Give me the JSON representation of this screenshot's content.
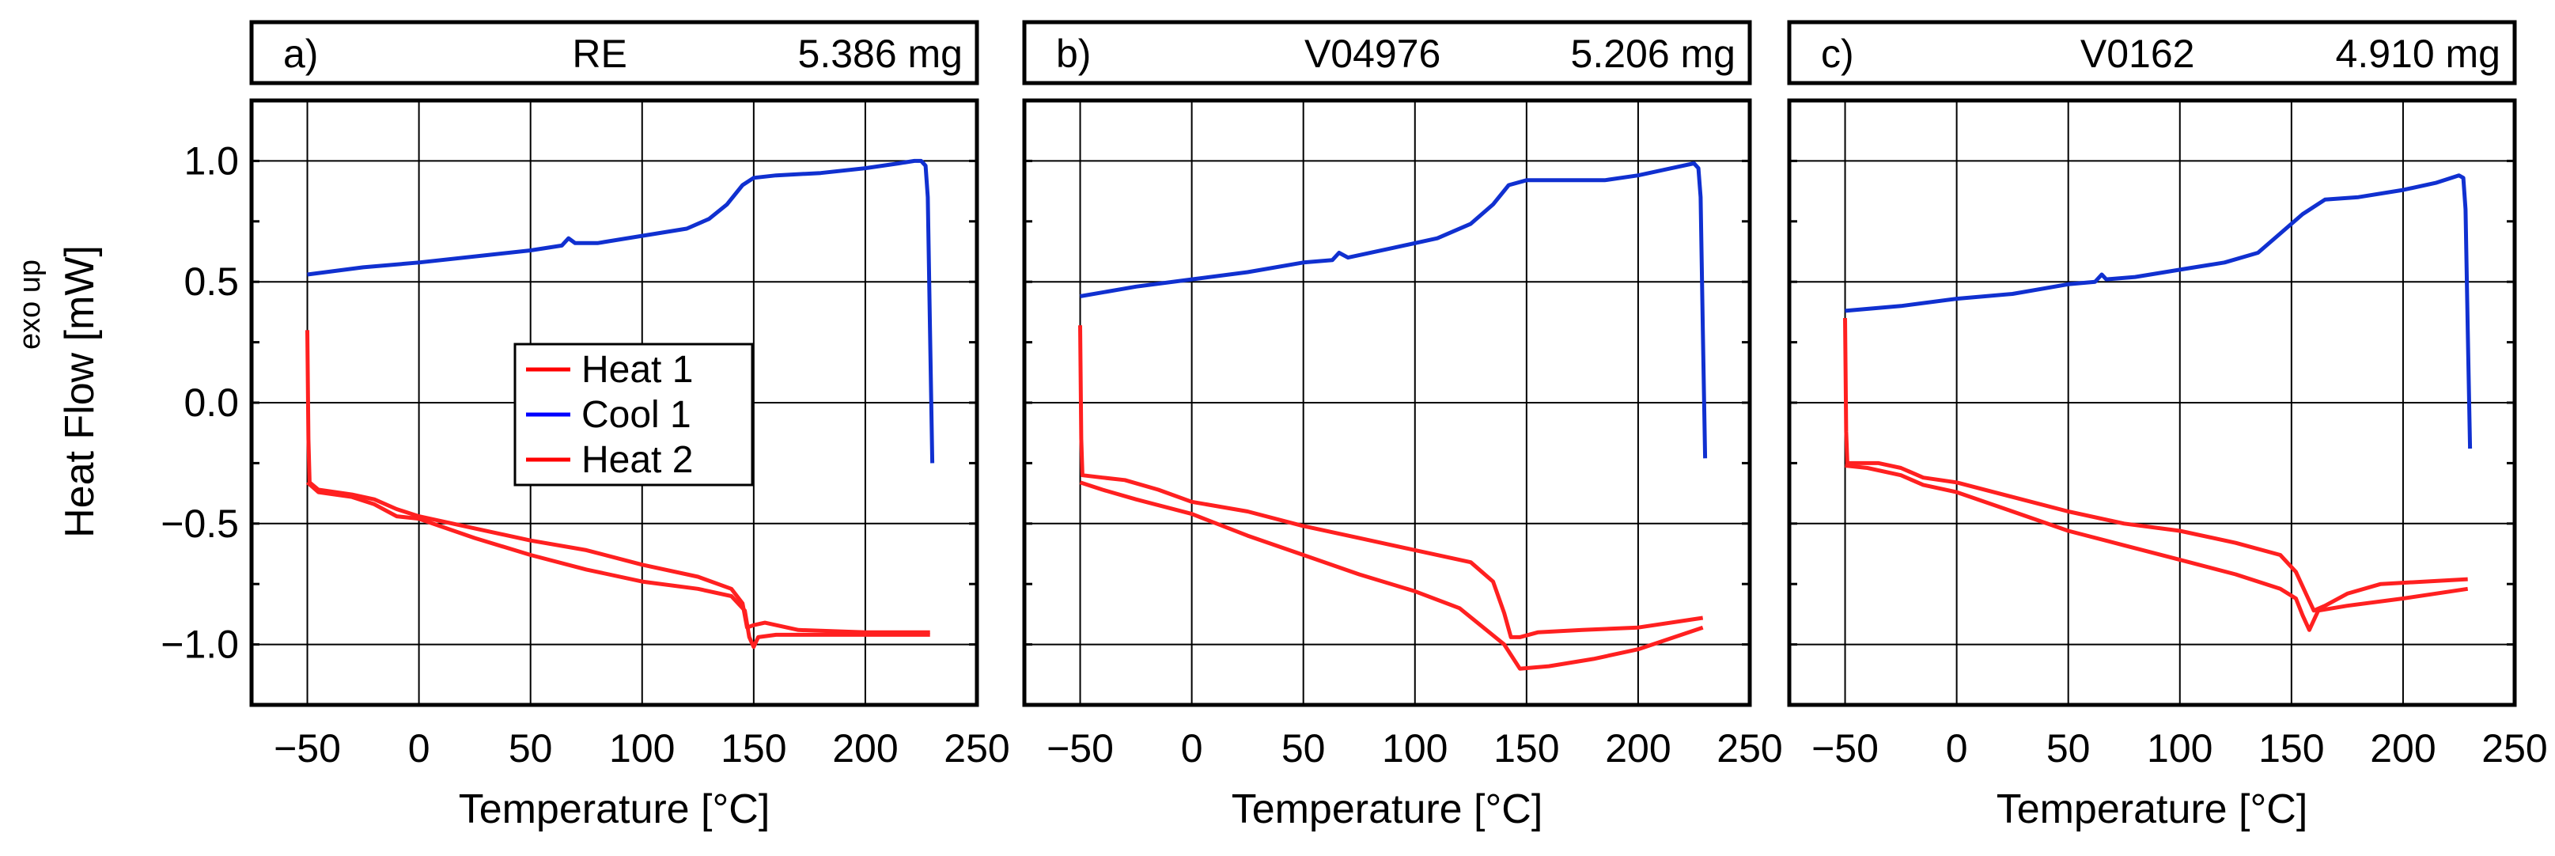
{
  "figure": {
    "y_label_side": "exo up",
    "y_label_main": "Heat Flow   [mW]"
  },
  "legend": {
    "entries": [
      {
        "label": "Heat 1",
        "color": "#ff0000"
      },
      {
        "label": "Cool 1",
        "color": "#0000ff"
      },
      {
        "label": "Heat 2",
        "color": "#ff0000"
      }
    ]
  },
  "colors": {
    "heat": "#ff2020",
    "cool": "#1030d0"
  },
  "chart_data": [
    {
      "type": "line",
      "panel": "a)",
      "sample": "RE",
      "mass": "5.386 mg",
      "xlabel": "Temperature   [°C]",
      "ylabel": "Heat Flow   [mW]",
      "xlim": [
        -75,
        250
      ],
      "ylim": [
        -1.25,
        1.25
      ],
      "xticks": [
        -50,
        0,
        50,
        100,
        150,
        200,
        250
      ],
      "xtick_labels": [
        "−50",
        "0",
        "50",
        "100",
        "150",
        "200",
        "250"
      ],
      "yticks": [
        -1.0,
        -0.5,
        0.0,
        0.5,
        1.0
      ],
      "ytick_labels": [
        "−1.0",
        "−0.5",
        "0.0",
        "0.5",
        "1.0"
      ],
      "series": [
        {
          "name": "Cool 1",
          "points": [
            [
              230,
              -0.25
            ],
            [
              229,
              0.3
            ],
            [
              228,
              0.85
            ],
            [
              227,
              0.98
            ],
            [
              225,
              1.0
            ],
            [
              222,
              1.0
            ],
            [
              215,
              0.99
            ],
            [
              200,
              0.97
            ],
            [
              180,
              0.95
            ],
            [
              160,
              0.94
            ],
            [
              150,
              0.93
            ],
            [
              145,
              0.9
            ],
            [
              138,
              0.82
            ],
            [
              130,
              0.76
            ],
            [
              120,
              0.72
            ],
            [
              100,
              0.69
            ],
            [
              80,
              0.66
            ],
            [
              70,
              0.66
            ],
            [
              67,
              0.68
            ],
            [
              64,
              0.65
            ],
            [
              50,
              0.63
            ],
            [
              30,
              0.61
            ],
            [
              0,
              0.58
            ],
            [
              -25,
              0.56
            ],
            [
              -50,
              0.53
            ]
          ]
        },
        {
          "name": "Heat 1",
          "points": [
            [
              -50,
              0.3
            ],
            [
              -49.5,
              -0.15
            ],
            [
              -49,
              -0.33
            ],
            [
              -45,
              -0.36
            ],
            [
              -30,
              -0.38
            ],
            [
              -20,
              -0.4
            ],
            [
              -10,
              -0.44
            ],
            [
              0,
              -0.47
            ],
            [
              25,
              -0.52
            ],
            [
              50,
              -0.57
            ],
            [
              75,
              -0.61
            ],
            [
              100,
              -0.67
            ],
            [
              125,
              -0.72
            ],
            [
              140,
              -0.77
            ],
            [
              145,
              -0.83
            ],
            [
              147,
              -0.93
            ],
            [
              150,
              -0.92
            ],
            [
              155,
              -0.91
            ],
            [
              170,
              -0.94
            ],
            [
              200,
              -0.95
            ],
            [
              229,
              -0.95
            ]
          ]
        },
        {
          "name": "Heat 2",
          "points": [
            [
              -50,
              -0.33
            ],
            [
              -45,
              -0.37
            ],
            [
              -30,
              -0.39
            ],
            [
              -20,
              -0.42
            ],
            [
              -10,
              -0.47
            ],
            [
              0,
              -0.48
            ],
            [
              25,
              -0.56
            ],
            [
              50,
              -0.63
            ],
            [
              75,
              -0.69
            ],
            [
              100,
              -0.74
            ],
            [
              125,
              -0.77
            ],
            [
              140,
              -0.8
            ],
            [
              146,
              -0.86
            ],
            [
              148,
              -0.97
            ],
            [
              150,
              -1.01
            ],
            [
              152,
              -0.97
            ],
            [
              160,
              -0.96
            ],
            [
              200,
              -0.96
            ],
            [
              229,
              -0.96
            ]
          ]
        }
      ]
    },
    {
      "type": "line",
      "panel": "b)",
      "sample": "V04976",
      "mass": "5.206 mg",
      "xlabel": "Temperature   [°C]",
      "ylabel": "Heat Flow   [mW]",
      "xlim": [
        -75,
        250
      ],
      "ylim": [
        -1.25,
        1.25
      ],
      "xticks": [
        -50,
        0,
        50,
        100,
        150,
        200,
        250
      ],
      "xtick_labels": [
        "−50",
        "0",
        "50",
        "100",
        "150",
        "200",
        "250"
      ],
      "yticks": [
        -1.0,
        -0.5,
        0.0,
        0.5,
        1.0
      ],
      "ytick_labels": [
        "−1.0",
        "−0.5",
        "0.0",
        "0.5",
        "1.0"
      ],
      "series": [
        {
          "name": "Cool 1",
          "points": [
            [
              230,
              -0.23
            ],
            [
              229,
              0.3
            ],
            [
              228,
              0.85
            ],
            [
              227,
              0.97
            ],
            [
              225,
              0.99
            ],
            [
              215,
              0.97
            ],
            [
              200,
              0.94
            ],
            [
              185,
              0.92
            ],
            [
              170,
              0.92
            ],
            [
              150,
              0.92
            ],
            [
              142,
              0.9
            ],
            [
              135,
              0.82
            ],
            [
              125,
              0.74
            ],
            [
              110,
              0.68
            ],
            [
              90,
              0.64
            ],
            [
              70,
              0.6
            ],
            [
              66,
              0.62
            ],
            [
              63,
              0.59
            ],
            [
              50,
              0.58
            ],
            [
              25,
              0.54
            ],
            [
              0,
              0.51
            ],
            [
              -25,
              0.48
            ],
            [
              -50,
              0.44
            ]
          ]
        },
        {
          "name": "Heat 1",
          "points": [
            [
              -50,
              0.32
            ],
            [
              -49.5,
              -0.15
            ],
            [
              -49,
              -0.3
            ],
            [
              -40,
              -0.31
            ],
            [
              -30,
              -0.32
            ],
            [
              -15,
              -0.36
            ],
            [
              0,
              -0.41
            ],
            [
              25,
              -0.45
            ],
            [
              50,
              -0.51
            ],
            [
              75,
              -0.56
            ],
            [
              100,
              -0.61
            ],
            [
              125,
              -0.66
            ],
            [
              135,
              -0.74
            ],
            [
              140,
              -0.87
            ],
            [
              143,
              -0.97
            ],
            [
              147,
              -0.97
            ],
            [
              155,
              -0.95
            ],
            [
              175,
              -0.94
            ],
            [
              200,
              -0.93
            ],
            [
              229,
              -0.89
            ]
          ]
        },
        {
          "name": "Heat 2",
          "points": [
            [
              -50,
              -0.33
            ],
            [
              -40,
              -0.36
            ],
            [
              -25,
              -0.4
            ],
            [
              0,
              -0.46
            ],
            [
              25,
              -0.55
            ],
            [
              50,
              -0.63
            ],
            [
              75,
              -0.71
            ],
            [
              100,
              -0.78
            ],
            [
              120,
              -0.85
            ],
            [
              140,
              -1.0
            ],
            [
              147,
              -1.1
            ],
            [
              160,
              -1.09
            ],
            [
              180,
              -1.06
            ],
            [
              200,
              -1.02
            ],
            [
              229,
              -0.93
            ]
          ]
        }
      ]
    },
    {
      "type": "line",
      "panel": "c)",
      "sample": "V0162",
      "mass": "4.910 mg",
      "xlabel": "Temperature   [°C]",
      "ylabel": "Heat Flow   [mW]",
      "xlim": [
        -75,
        250
      ],
      "ylim": [
        -1.25,
        1.25
      ],
      "xticks": [
        -50,
        0,
        50,
        100,
        150,
        200,
        250
      ],
      "xtick_labels": [
        "−50",
        "0",
        "50",
        "100",
        "150",
        "200",
        "250"
      ],
      "yticks": [
        -1.0,
        -0.5,
        0.0,
        0.5,
        1.0
      ],
      "ytick_labels": [
        "−1.0",
        "−0.5",
        "0.0",
        "0.5",
        "1.0"
      ],
      "series": [
        {
          "name": "Cool 1",
          "points": [
            [
              230,
              -0.19
            ],
            [
              229,
              0.3
            ],
            [
              228,
              0.8
            ],
            [
              227,
              0.93
            ],
            [
              225,
              0.94
            ],
            [
              215,
              0.91
            ],
            [
              200,
              0.88
            ],
            [
              180,
              0.85
            ],
            [
              165,
              0.84
            ],
            [
              155,
              0.78
            ],
            [
              145,
              0.7
            ],
            [
              135,
              0.62
            ],
            [
              120,
              0.58
            ],
            [
              100,
              0.55
            ],
            [
              80,
              0.52
            ],
            [
              67,
              0.51
            ],
            [
              65,
              0.53
            ],
            [
              62,
              0.5
            ],
            [
              50,
              0.49
            ],
            [
              25,
              0.45
            ],
            [
              0,
              0.43
            ],
            [
              -25,
              0.4
            ],
            [
              -50,
              0.38
            ]
          ]
        },
        {
          "name": "Heat 1",
          "points": [
            [
              -50,
              0.35
            ],
            [
              -49.5,
              -0.12
            ],
            [
              -49,
              -0.25
            ],
            [
              -35,
              -0.25
            ],
            [
              -25,
              -0.27
            ],
            [
              -15,
              -0.31
            ],
            [
              0,
              -0.33
            ],
            [
              25,
              -0.39
            ],
            [
              50,
              -0.45
            ],
            [
              75,
              -0.5
            ],
            [
              100,
              -0.53
            ],
            [
              125,
              -0.58
            ],
            [
              145,
              -0.63
            ],
            [
              152,
              -0.7
            ],
            [
              157,
              -0.8
            ],
            [
              160,
              -0.86
            ],
            [
              165,
              -0.84
            ],
            [
              175,
              -0.79
            ],
            [
              190,
              -0.75
            ],
            [
              229,
              -0.73
            ]
          ]
        },
        {
          "name": "Heat 2",
          "points": [
            [
              -50,
              -0.26
            ],
            [
              -40,
              -0.27
            ],
            [
              -25,
              -0.3
            ],
            [
              -15,
              -0.34
            ],
            [
              0,
              -0.37
            ],
            [
              25,
              -0.45
            ],
            [
              50,
              -0.53
            ],
            [
              75,
              -0.59
            ],
            [
              100,
              -0.65
            ],
            [
              125,
              -0.71
            ],
            [
              145,
              -0.77
            ],
            [
              152,
              -0.81
            ],
            [
              155,
              -0.88
            ],
            [
              158,
              -0.94
            ],
            [
              162,
              -0.86
            ],
            [
              175,
              -0.84
            ],
            [
              200,
              -0.81
            ],
            [
              229,
              -0.77
            ]
          ]
        }
      ]
    }
  ]
}
